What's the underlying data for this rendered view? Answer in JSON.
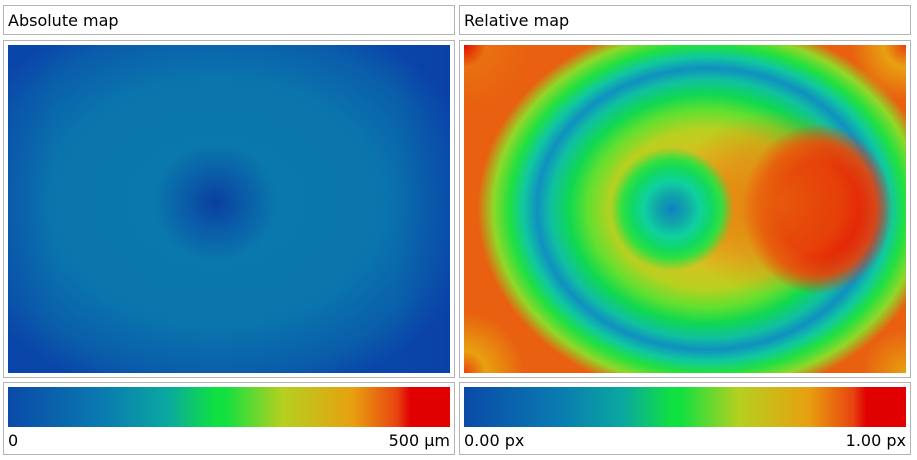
{
  "panels": {
    "absolute": {
      "title": "Absolute map",
      "scale_min_label": "0",
      "scale_max_label": "500 µm"
    },
    "relative": {
      "title": "Relative map",
      "scale_min_label": "0.00 px",
      "scale_max_label": "1.00 px"
    }
  },
  "colormap": {
    "stops": [
      "#0a4aa8",
      "#0a7cb0",
      "#0aa8a0",
      "#10e040",
      "#b4d020",
      "#e8a010",
      "#e84410",
      "#e00000"
    ]
  }
}
